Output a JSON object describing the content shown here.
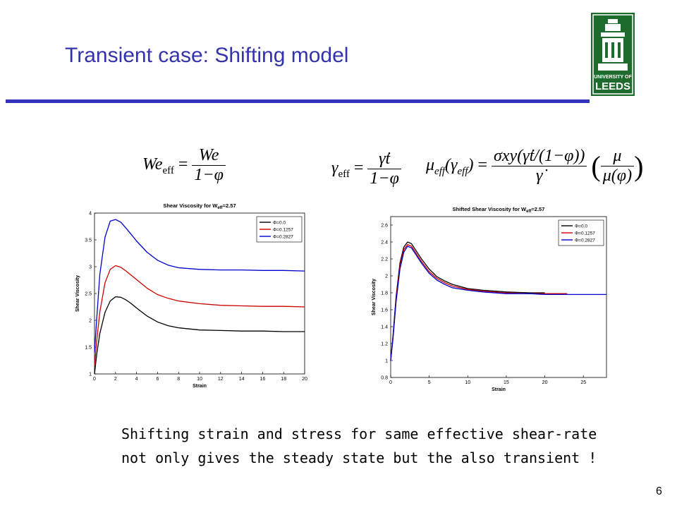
{
  "slide": {
    "title": "Transient case: Shifting model",
    "page_number": "6",
    "caption_line1": "Shifting strain and stress for same effective shear-rate",
    "caption_line2": "not only gives the steady state but the also transient !"
  },
  "logo": {
    "line1": "UNIVERSITY OF",
    "line2": "LEEDS",
    "color": "#1e6b2e"
  },
  "equations": {
    "we_lhs": "We",
    "we_sub": "eff",
    "we_num": "We",
    "we_den": "1−φ",
    "gamma_lhs": "γ",
    "gamma_sub": "eff",
    "gamma_num": "γ̇t",
    "gamma_den": "1−φ",
    "mu_lhs": "μ",
    "mu_sub": "eff",
    "mu_arg": "(γ",
    "mu_arg_sub": "eff",
    "mu_arg_close": ")",
    "mu_num": "σxy(γ̇t/(1−φ))",
    "mu_den": "γ̇",
    "mu_ratio_num": "μ",
    "mu_ratio_den": "μ(φ)"
  },
  "colors": {
    "title": "#3333aa",
    "rule": "#3333bb",
    "series": [
      "#000000",
      "#cc0000",
      "#0000cc"
    ]
  },
  "chart_data": [
    {
      "type": "line",
      "title_main": "Shear Viscosity for W",
      "title_sub": "eff",
      "title_tail": "=2.57",
      "xlabel": "Strain",
      "ylabel": "Shear Viscosity",
      "xlim": [
        0,
        20
      ],
      "ylim": [
        1,
        4
      ],
      "xticks": [
        0,
        2,
        4,
        6,
        8,
        10,
        12,
        14,
        16,
        18,
        20
      ],
      "yticks": [
        1,
        1.5,
        2,
        2.5,
        3,
        3.5,
        4
      ],
      "ytick_labels": [
        "1",
        "1.5",
        "2",
        "2.5",
        "3",
        "3.5",
        "4"
      ],
      "legend_position": "top-right",
      "series": [
        {
          "name": "Φ=0.0",
          "color": "#000000",
          "x": [
            0,
            0.2,
            0.5,
            1,
            1.5,
            2,
            2.5,
            3,
            3.5,
            4,
            5,
            6,
            7,
            8,
            10,
            12,
            14,
            16,
            18,
            20
          ],
          "y": [
            1.0,
            1.35,
            1.75,
            2.15,
            2.36,
            2.44,
            2.43,
            2.38,
            2.31,
            2.23,
            2.08,
            1.97,
            1.9,
            1.86,
            1.82,
            1.81,
            1.8,
            1.8,
            1.79,
            1.79
          ]
        },
        {
          "name": "Φ=0.1257",
          "color": "#cc0000",
          "x": [
            0,
            0.2,
            0.5,
            1,
            1.5,
            2,
            2.5,
            3,
            3.5,
            4,
            5,
            6,
            7,
            8,
            10,
            12,
            14,
            16,
            18,
            20
          ],
          "y": [
            1.15,
            1.6,
            2.15,
            2.7,
            2.95,
            3.02,
            2.99,
            2.92,
            2.84,
            2.76,
            2.6,
            2.48,
            2.41,
            2.36,
            2.31,
            2.28,
            2.27,
            2.26,
            2.26,
            2.25
          ]
        },
        {
          "name": "Φ=0.2827",
          "color": "#0000cc",
          "x": [
            0,
            0.2,
            0.5,
            1,
            1.5,
            2,
            2.5,
            3,
            3.5,
            4,
            5,
            6,
            7,
            8,
            10,
            12,
            14,
            16,
            18,
            20
          ],
          "y": [
            1.4,
            2.0,
            2.85,
            3.55,
            3.85,
            3.88,
            3.83,
            3.72,
            3.6,
            3.48,
            3.27,
            3.12,
            3.03,
            2.98,
            2.95,
            2.94,
            2.94,
            2.93,
            2.93,
            2.92
          ]
        }
      ]
    },
    {
      "type": "line",
      "title_main": "Shifted Shear Viscosity for W",
      "title_sub": "eff",
      "title_tail": "=2.57",
      "xlabel": "Strain",
      "ylabel": "Shear Viscosity",
      "xlim": [
        0,
        28
      ],
      "ylim": [
        0.8,
        2.7
      ],
      "xticks": [
        0,
        5,
        10,
        15,
        20,
        25
      ],
      "yticks": [
        0.8,
        1,
        1.2,
        1.4,
        1.6,
        1.8,
        2,
        2.2,
        2.4,
        2.6
      ],
      "ytick_labels": [
        "0.8",
        "1",
        "1.2",
        "1.4",
        "1.6",
        "1.8",
        "2",
        "2.2",
        "2.4",
        "2.6"
      ],
      "legend_position": "top-right",
      "series": [
        {
          "name": "Φ=0.0",
          "color": "#000000",
          "x": [
            0,
            0.3,
            0.7,
            1.2,
            1.7,
            2.2,
            2.7,
            3.2,
            4,
            5,
            6,
            7,
            8,
            10,
            12,
            15,
            18,
            20
          ],
          "y": [
            1.0,
            1.3,
            1.75,
            2.15,
            2.34,
            2.4,
            2.38,
            2.31,
            2.2,
            2.08,
            1.99,
            1.94,
            1.9,
            1.85,
            1.83,
            1.81,
            1.8,
            1.8
          ]
        },
        {
          "name": "Φ=0.1257",
          "color": "#cc0000",
          "x": [
            0,
            0.3,
            0.7,
            1.2,
            1.7,
            2.2,
            2.7,
            3.2,
            4,
            5,
            6,
            7,
            8,
            10,
            12,
            15,
            18,
            20,
            22.9
          ],
          "y": [
            1.0,
            1.28,
            1.72,
            2.12,
            2.31,
            2.37,
            2.35,
            2.28,
            2.17,
            2.05,
            1.97,
            1.92,
            1.88,
            1.84,
            1.82,
            1.8,
            1.79,
            1.79,
            1.79
          ]
        },
        {
          "name": "Φ=0.2827",
          "color": "#0000cc",
          "x": [
            0,
            0.3,
            0.7,
            1.2,
            1.7,
            2.2,
            2.7,
            3.2,
            4,
            5,
            6,
            7,
            8,
            10,
            12,
            15,
            18,
            20,
            24,
            28
          ],
          "y": [
            1.0,
            1.26,
            1.69,
            2.08,
            2.28,
            2.35,
            2.33,
            2.26,
            2.15,
            2.03,
            1.95,
            1.9,
            1.86,
            1.83,
            1.81,
            1.79,
            1.79,
            1.78,
            1.78,
            1.78
          ]
        }
      ]
    }
  ]
}
